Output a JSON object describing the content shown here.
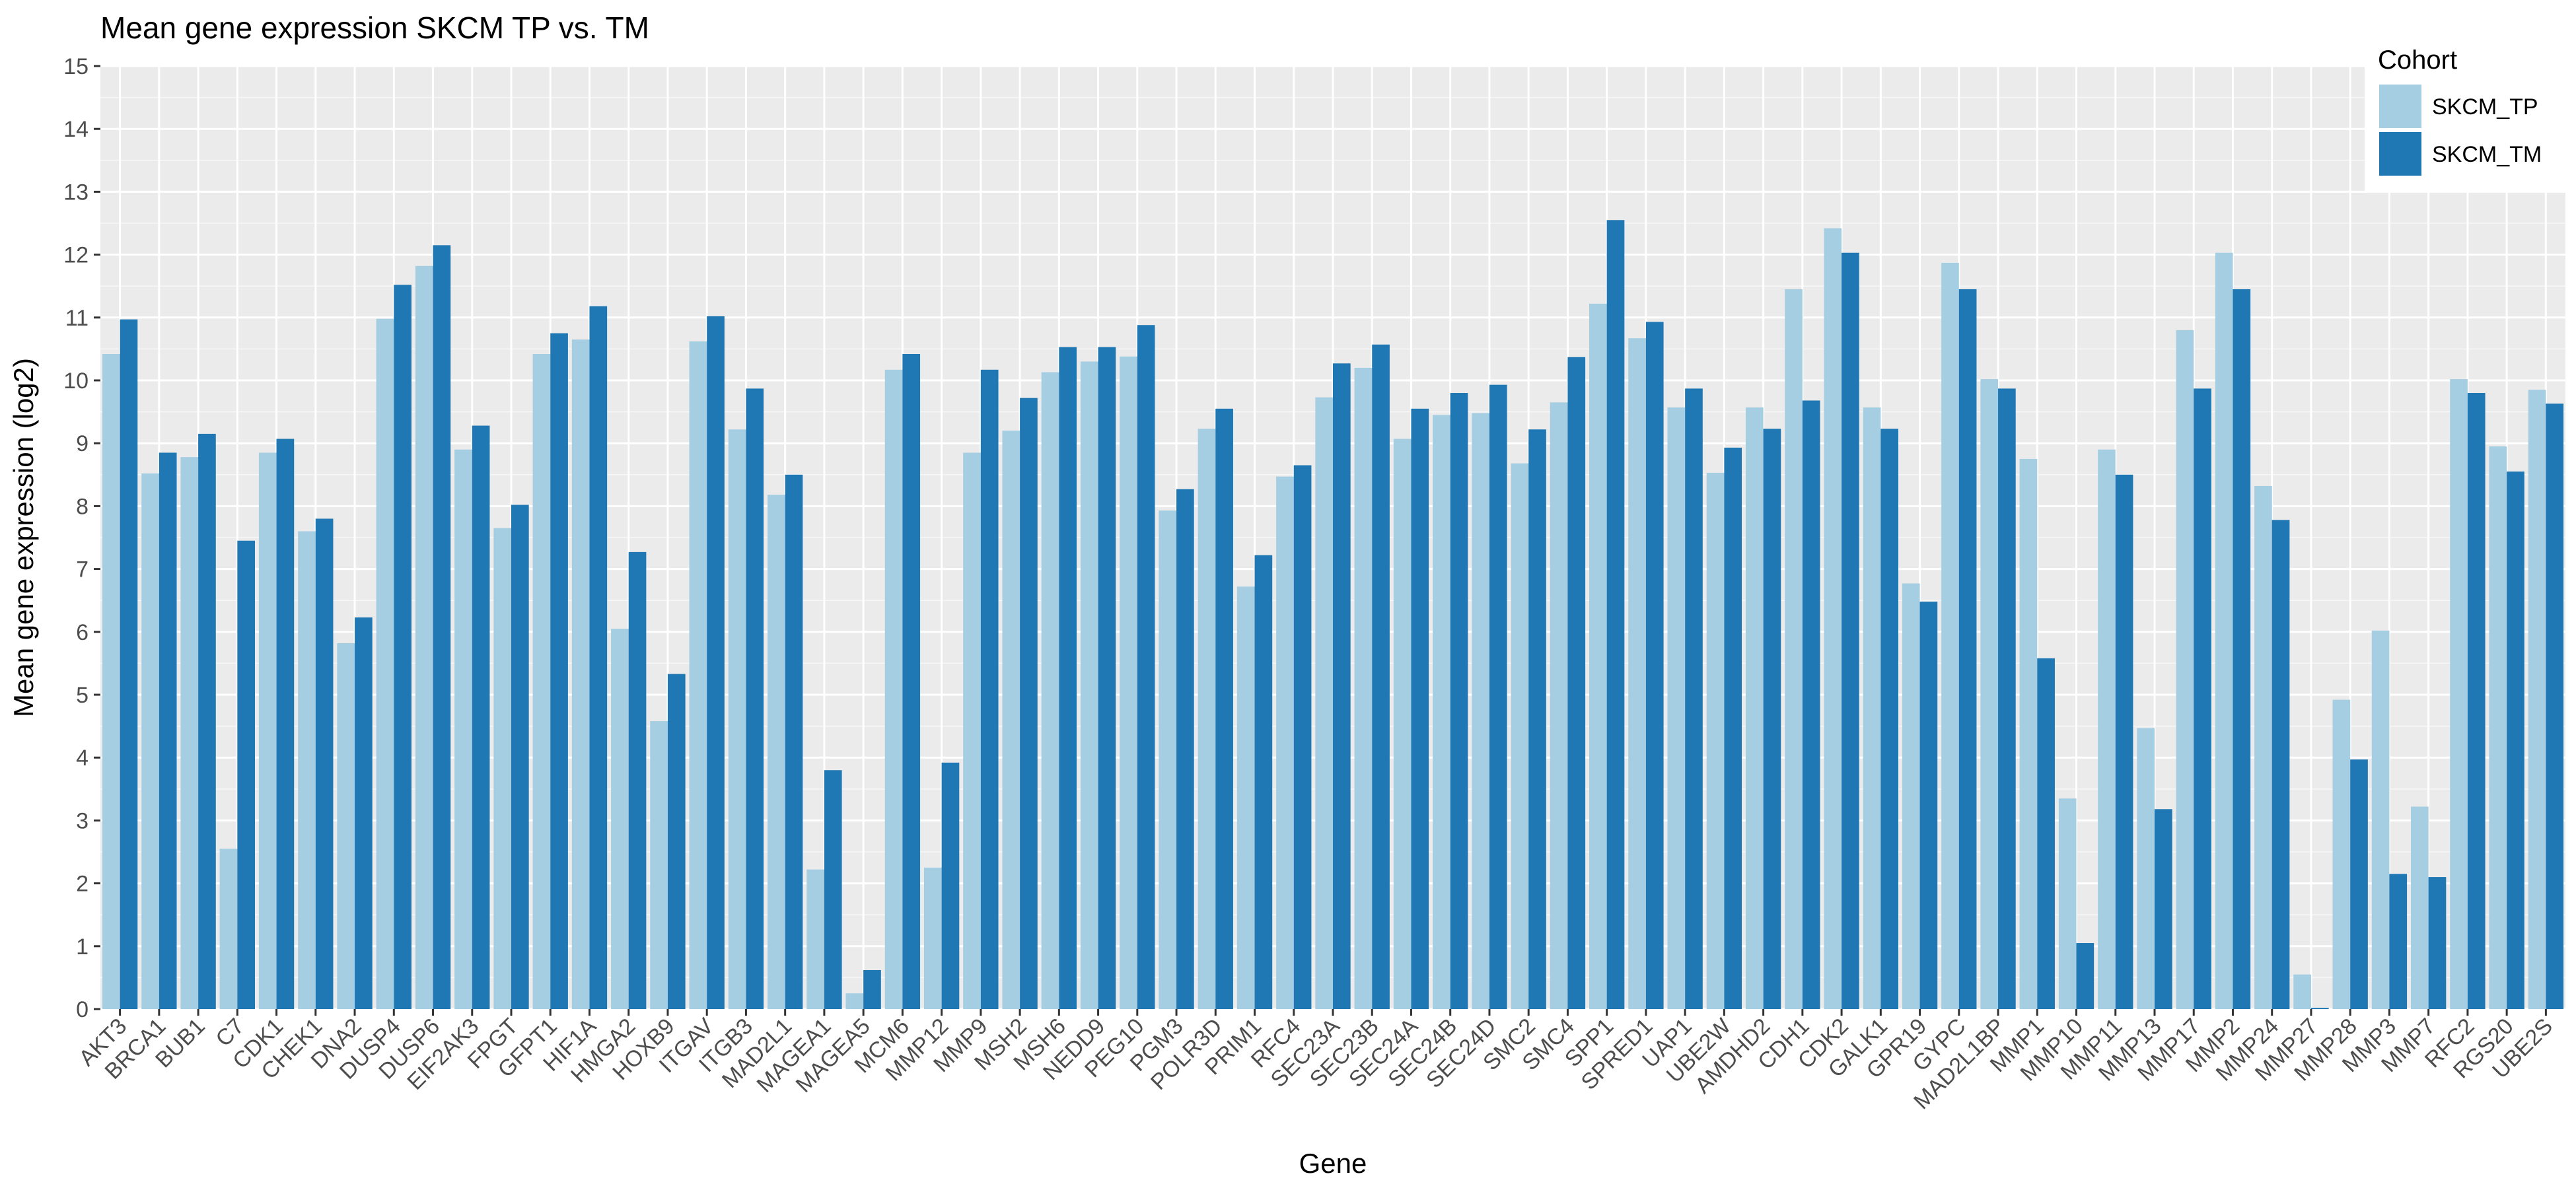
{
  "chart_data": {
    "type": "bar",
    "title": "Mean gene expression SKCM TP vs. TM",
    "xlabel": "Gene",
    "ylabel": "Mean gene expression (log2)",
    "ylim": [
      0,
      15
    ],
    "yticks": [
      0,
      1,
      2,
      3,
      4,
      5,
      6,
      7,
      8,
      9,
      10,
      11,
      12,
      13,
      14,
      15
    ],
    "grid": true,
    "legend": {
      "title": "Cohort",
      "position": "top-right"
    },
    "categories": [
      "AKT3",
      "BRCA1",
      "BUB1",
      "C7",
      "CDK1",
      "CHEK1",
      "DNA2",
      "DUSP4",
      "DUSP6",
      "EIF2AK3",
      "FPGT",
      "GFPT1",
      "HIF1A",
      "HMGA2",
      "HOXB9",
      "ITGAV",
      "ITGB3",
      "MAD2L1",
      "MAGEA1",
      "MAGEA5",
      "MCM6",
      "MMP12",
      "MMP9",
      "MSH2",
      "MSH6",
      "NEDD9",
      "PEG10",
      "PGM3",
      "POLR3D",
      "PRIM1",
      "RFC4",
      "SEC23A",
      "SEC23B",
      "SEC24A",
      "SEC24B",
      "SEC24D",
      "SMC2",
      "SMC4",
      "SPP1",
      "SPRED1",
      "UAP1",
      "UBE2W",
      "AMDHD2",
      "CDH1",
      "CDK2",
      "GALK1",
      "GPR19",
      "GYPC",
      "MAD2L1BP",
      "MMP1",
      "MMP10",
      "MMP11",
      "MMP13",
      "MMP17",
      "MMP2",
      "MMP24",
      "MMP27",
      "MMP28",
      "MMP3",
      "MMP7",
      "RFC2",
      "RGS20",
      "UBE2S"
    ],
    "series": [
      {
        "name": "SKCM_TP",
        "color": "#a6cee3",
        "values": [
          10.42,
          8.52,
          8.78,
          2.55,
          8.85,
          7.6,
          5.82,
          10.98,
          11.82,
          8.9,
          7.65,
          10.42,
          10.65,
          6.05,
          4.58,
          10.62,
          9.22,
          8.18,
          2.22,
          0.25,
          10.17,
          2.25,
          8.85,
          9.2,
          10.13,
          10.3,
          10.38,
          7.93,
          9.23,
          6.72,
          8.47,
          9.73,
          10.2,
          9.07,
          9.45,
          9.48,
          8.68,
          9.65,
          11.22,
          10.67,
          9.57,
          8.53,
          9.57,
          11.45,
          12.42,
          9.57,
          6.77,
          11.87,
          10.02,
          8.75,
          3.35,
          8.9,
          4.47,
          10.8,
          12.03,
          8.32,
          0.55,
          4.92,
          6.02,
          3.22,
          10.02,
          8.95,
          9.85
        ]
      },
      {
        "name": "SKCM_TM",
        "color": "#1f78b4",
        "values": [
          10.97,
          8.85,
          9.15,
          7.45,
          9.07,
          7.8,
          6.23,
          11.52,
          12.15,
          9.28,
          8.02,
          10.75,
          11.18,
          7.27,
          5.33,
          11.02,
          9.87,
          8.5,
          3.8,
          0.62,
          10.42,
          3.92,
          10.17,
          9.72,
          10.53,
          10.53,
          10.88,
          8.27,
          9.55,
          7.22,
          8.65,
          10.27,
          10.57,
          9.55,
          9.8,
          9.93,
          9.22,
          10.37,
          12.55,
          10.93,
          9.87,
          8.93,
          9.23,
          9.68,
          12.03,
          9.23,
          6.48,
          11.45,
          9.87,
          5.58,
          1.05,
          8.5,
          3.18,
          9.87,
          11.45,
          7.78,
          0.02,
          3.97,
          2.15,
          2.1,
          9.8,
          8.55,
          9.63
        ]
      }
    ]
  }
}
